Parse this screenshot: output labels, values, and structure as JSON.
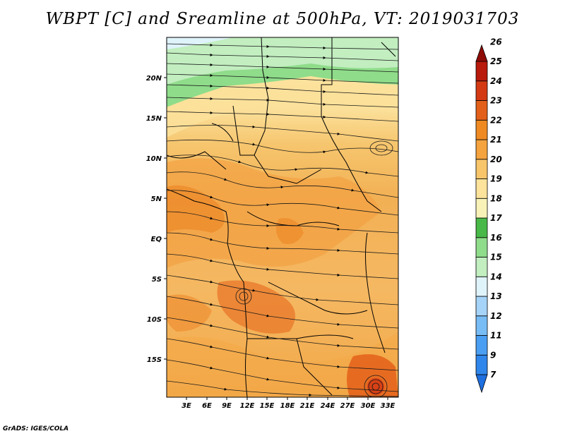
{
  "title": "WBPT [C] and Sreamline at 500hPa, VT: 2019031703",
  "credit": "GrADS: IGES/COLA",
  "map": {
    "lat_labels": [
      "20N",
      "15N",
      "10N",
      "5N",
      "EQ",
      "5S",
      "10S",
      "15S"
    ],
    "lon_labels": [
      "3E",
      "6E",
      "9E",
      "12E",
      "15E",
      "18E",
      "21E",
      "24E",
      "27E",
      "30E",
      "33E"
    ]
  },
  "colorbar": {
    "levels": [
      "7",
      "9",
      "11",
      "12",
      "13",
      "14",
      "15",
      "16",
      "17",
      "18",
      "19",
      "20",
      "21",
      "22",
      "23",
      "24",
      "25",
      "26"
    ],
    "colors": [
      "#1e6fe0",
      "#2f86eb",
      "#4a9ff2",
      "#78bcf5",
      "#a6d4f8",
      "#dff3fb",
      "#c2eec0",
      "#8fdc8a",
      "#48b948",
      "#f8f2b8",
      "#fde39b",
      "#f8c56b",
      "#f5a33e",
      "#ef8a22",
      "#e3601a",
      "#d33a14",
      "#b81a0c",
      "#8e0b06"
    ]
  }
}
